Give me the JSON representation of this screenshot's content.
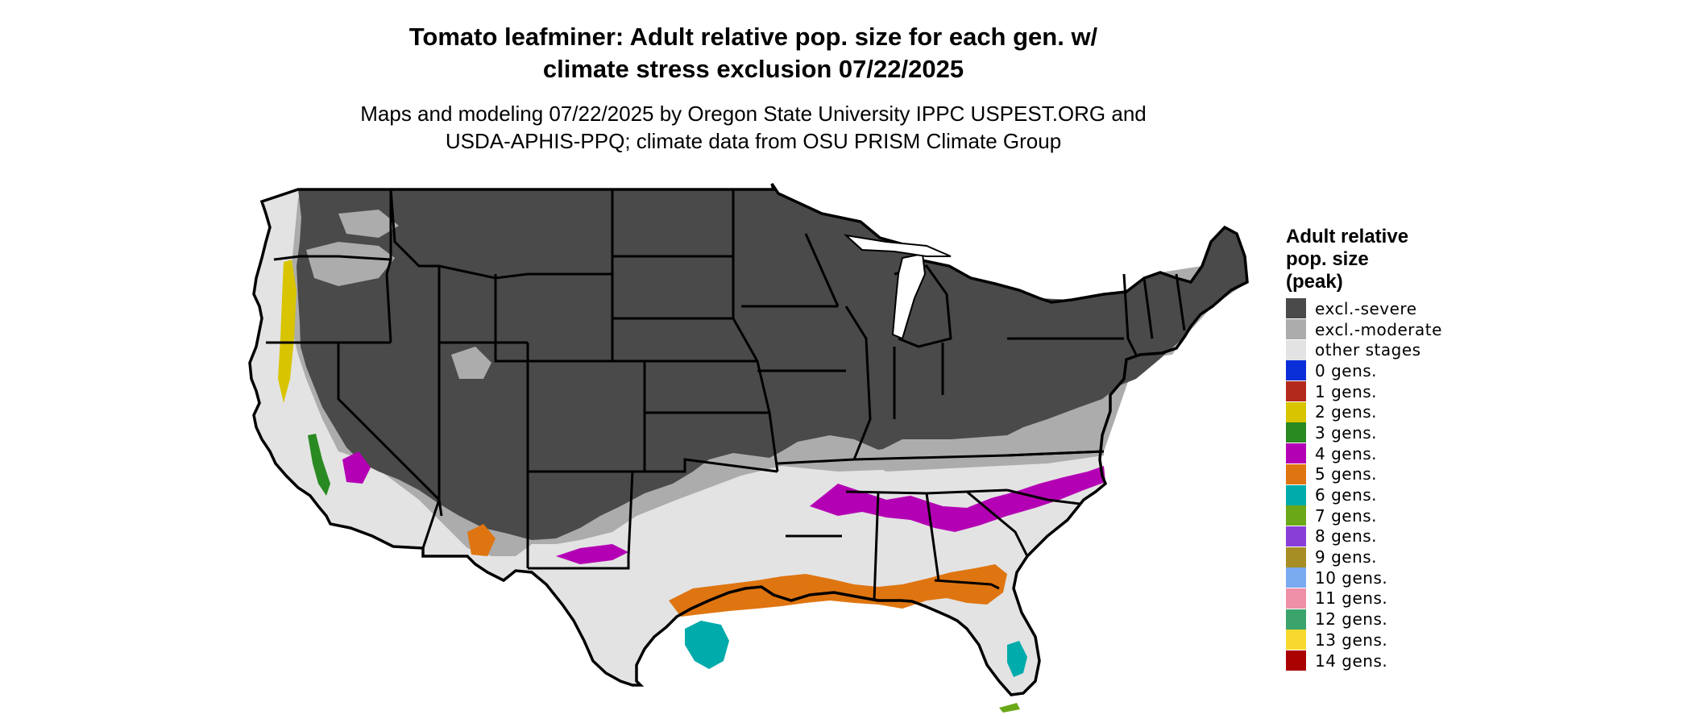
{
  "title": {
    "line1": "Tomato leafminer: Adult relative pop. size for each gen. w/",
    "line2": "climate stress exclusion 07/22/2025"
  },
  "subtitle": {
    "line1": "Maps and modeling 07/22/2025 by Oregon State University IPPC USPEST.ORG and",
    "line2": "USDA-APHIS-PPQ; climate data from OSU PRISM Climate Group"
  },
  "legend": {
    "title_lines": [
      "Adult relative",
      "pop. size",
      "(peak)"
    ],
    "items": [
      {
        "label": "excl.-severe",
        "color": "#4a4a4a"
      },
      {
        "label": "excl.-moderate",
        "color": "#acacac"
      },
      {
        "label": "other stages",
        "color": "#e3e3e3"
      },
      {
        "label": "0 gens.",
        "color": "#0a2ed8"
      },
      {
        "label": "1 gens.",
        "color": "#b32a1c"
      },
      {
        "label": "2 gens.",
        "color": "#d8c400"
      },
      {
        "label": "3 gens.",
        "color": "#2a8a22"
      },
      {
        "label": "4 gens.",
        "color": "#b400b4"
      },
      {
        "label": "5 gens.",
        "color": "#df7510"
      },
      {
        "label": "6 gens.",
        "color": "#00abab"
      },
      {
        "label": "7 gens.",
        "color": "#6aa818"
      },
      {
        "label": "8 gens.",
        "color": "#8a3ed8"
      },
      {
        "label": "9 gens.",
        "color": "#a68e24"
      },
      {
        "label": "10 gens.",
        "color": "#7aaaf0"
      },
      {
        "label": "11 gens.",
        "color": "#f090a8"
      },
      {
        "label": "12 gens.",
        "color": "#3aa46c"
      },
      {
        "label": "13 gens.",
        "color": "#f8d82e"
      },
      {
        "label": "14 gens.",
        "color": "#ab0000"
      }
    ]
  },
  "map": {
    "region": "Contiguous United States"
  }
}
